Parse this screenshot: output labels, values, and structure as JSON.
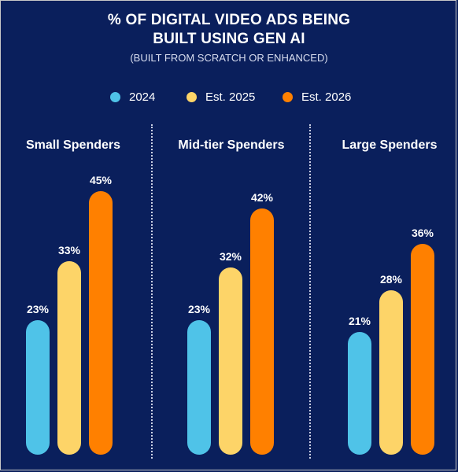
{
  "title_line1": "% OF DIGITAL VIDEO ADS BEING",
  "title_line2": "BUILT USING GEN AI",
  "subtitle": "(BUILT FROM SCRATCH OR ENHANCED)",
  "colors": {
    "background": "#0a1f5c",
    "2024": "#4fc3e8",
    "Est. 2025": "#fdd468",
    "Est. 2026": "#ff8000"
  },
  "chart_data": {
    "type": "bar",
    "title": "% OF DIGITAL VIDEO ADS BEING BUILT USING GEN AI",
    "subtitle": "(BUILT FROM SCRATCH OR ENHANCED)",
    "categories": [
      "Small Spenders",
      "Mid-tier Spenders",
      "Large Spenders"
    ],
    "series": [
      {
        "name": "2024",
        "values": [
          23,
          23,
          21
        ]
      },
      {
        "name": "Est. 2025",
        "values": [
          33,
          32,
          28
        ]
      },
      {
        "name": "Est. 2026",
        "values": [
          45,
          42,
          36
        ]
      }
    ],
    "value_suffix": "%",
    "ylim": [
      0,
      45
    ],
    "legend_position": "top",
    "grid": false
  }
}
